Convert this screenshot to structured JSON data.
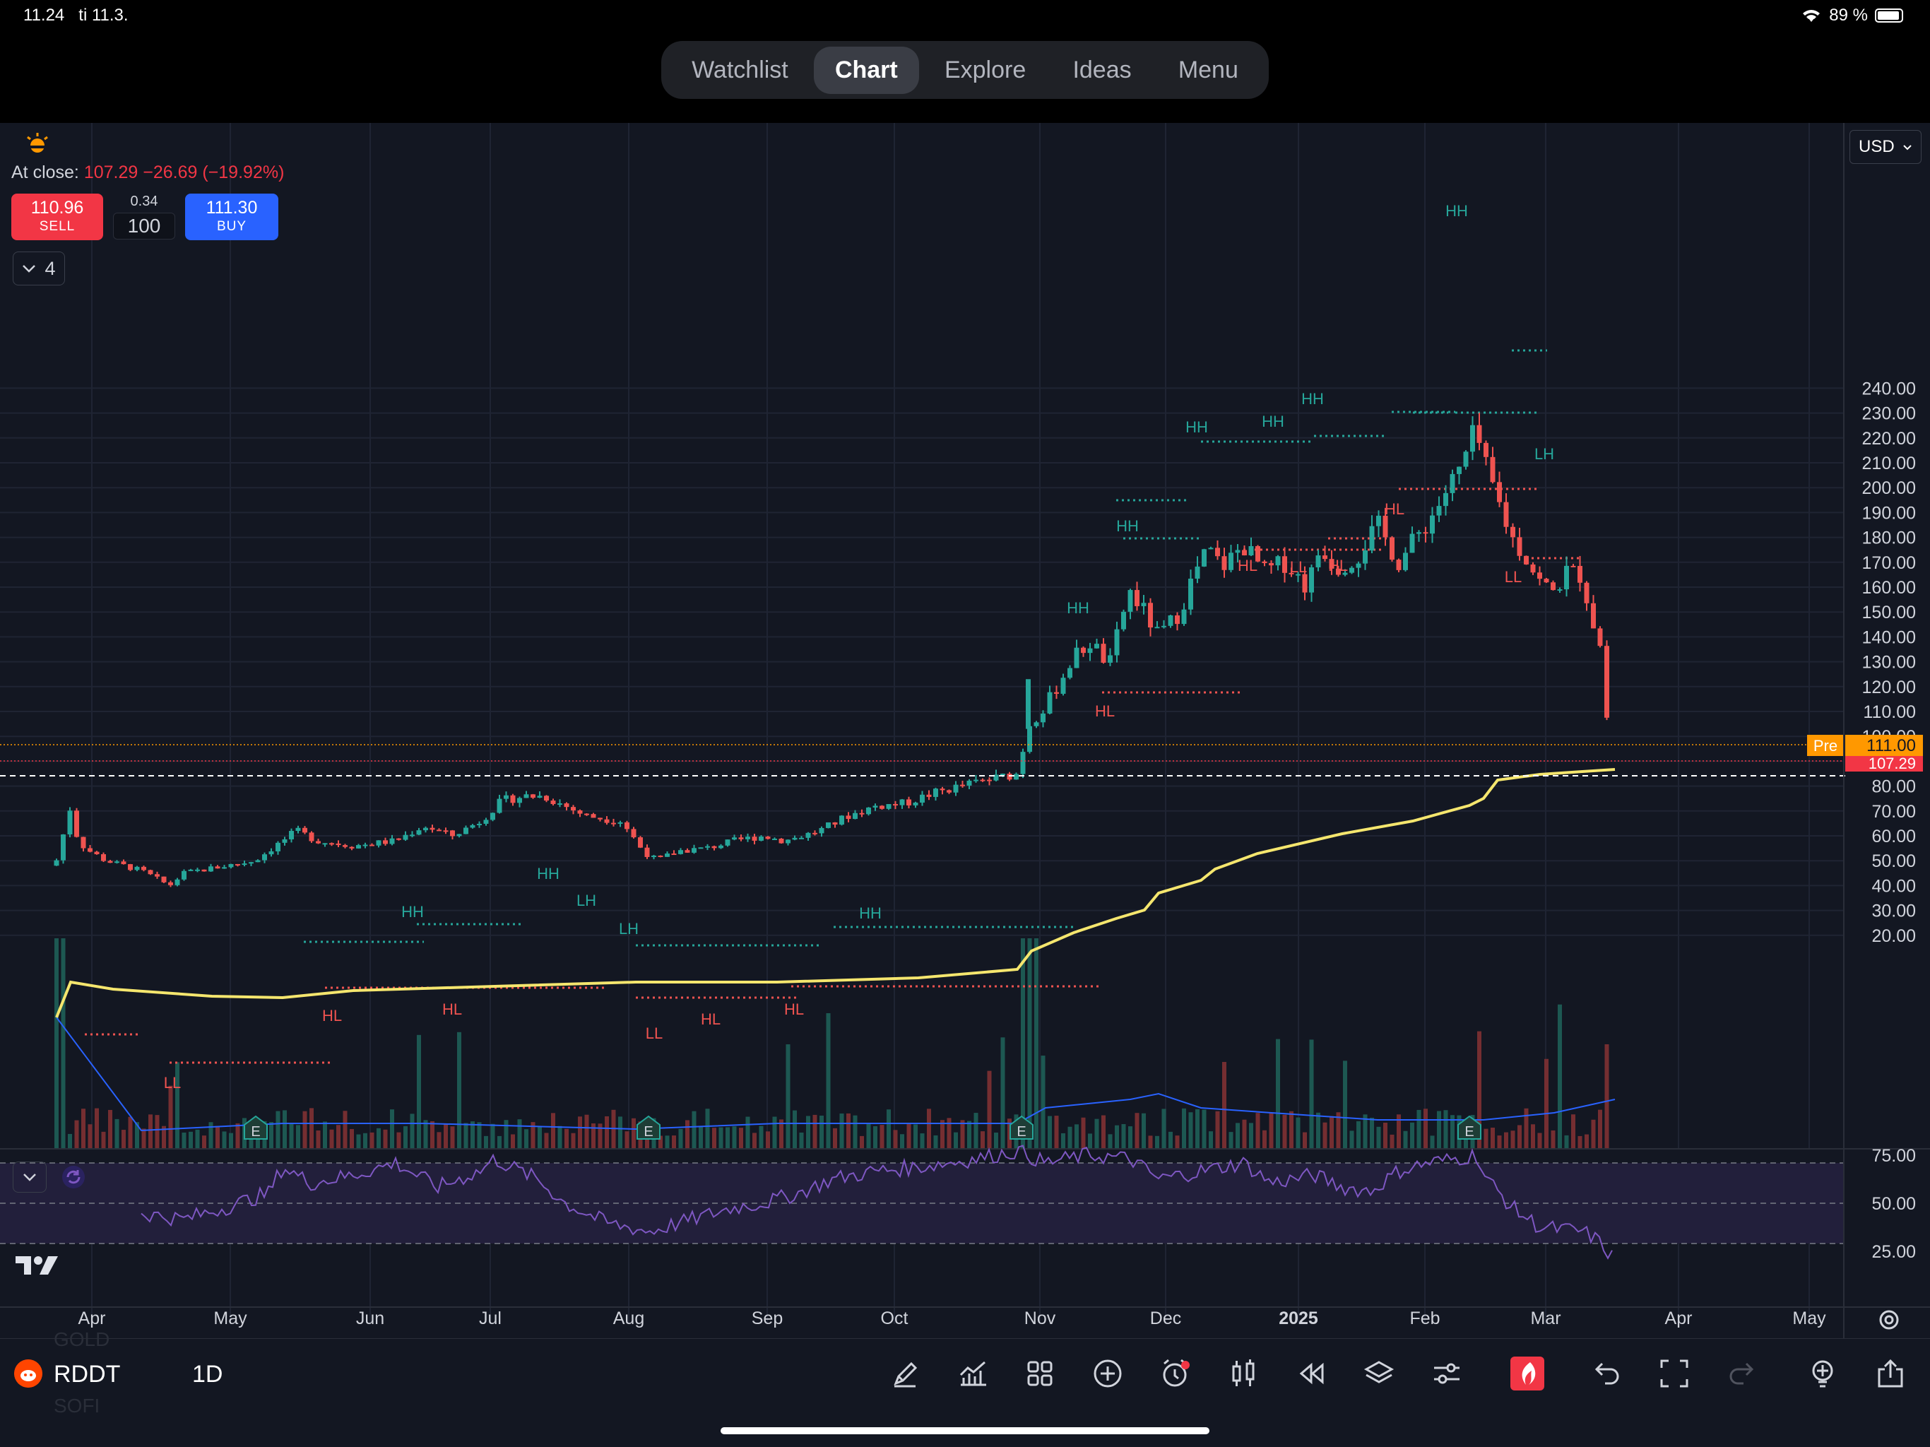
{
  "status_bar": {
    "time": "11.24",
    "date": "ti 11.3.",
    "battery": "89 %"
  },
  "nav": {
    "tabs": [
      {
        "label": "Watchlist",
        "active": false
      },
      {
        "label": "Chart",
        "active": true
      },
      {
        "label": "Explore",
        "active": false
      },
      {
        "label": "Ideas",
        "active": false
      },
      {
        "label": "Menu",
        "active": false
      }
    ]
  },
  "quote": {
    "at_close_label": "At close:",
    "at_close_value": "107.29",
    "change": "−26.69 (−19.92%)",
    "sell_price": "110.96",
    "sell_label": "SELL",
    "spread": "0.34",
    "quantity": "100",
    "buy_price": "111.30",
    "buy_label": "BUY",
    "indicators_count": "4"
  },
  "currency_select": "USD",
  "price_axis": {
    "ticks": [
      "240.00",
      "230.00",
      "220.00",
      "210.00",
      "200.00",
      "190.00",
      "180.00",
      "170.00",
      "160.00",
      "150.00",
      "140.00",
      "130.00",
      "120.00",
      "110.00",
      "100.00",
      "90.00",
      "80.00",
      "70.00",
      "60.00",
      "50.00",
      "40.00",
      "30.00",
      "20.00"
    ],
    "pre_label": "Pre",
    "pre_price": "111.00",
    "last_price": "107.29"
  },
  "rsi_axis": {
    "ticks": [
      "75.00",
      "50.00",
      "25.00"
    ]
  },
  "time_axis": {
    "labels": [
      "Apr",
      "May",
      "Jun",
      "Jul",
      "Aug",
      "Sep",
      "Oct",
      "Nov",
      "Dec",
      "2025",
      "Feb",
      "Mar",
      "Apr",
      "May"
    ]
  },
  "pattern_labels": [
    "HH",
    "HL",
    "LL",
    "LH"
  ],
  "earnings_marker": "E",
  "chart_data": {
    "type": "candlestick",
    "symbol": "RDDT",
    "interval": "1D",
    "ylim": [
      20,
      240
    ],
    "close_series_approx": {
      "dates": [
        "Mar",
        "Apr",
        "May",
        "Jun",
        "Jul",
        "Aug",
        "Sep",
        "Oct",
        "Oct-end",
        "Nov",
        "Dec",
        "2025",
        "Feb",
        "Feb-peak",
        "Mar",
        "Mar-last"
      ],
      "values": [
        48,
        42,
        47,
        55,
        72,
        52,
        56,
        68,
        82,
        120,
        170,
        165,
        175,
        228,
        165,
        107.29
      ]
    },
    "vwap_approx": {
      "dates": [
        "Mar",
        "Apr",
        "May",
        "Jun",
        "Jul",
        "Aug",
        "Sep",
        "Oct",
        "Nov",
        "Dec",
        "2025",
        "Feb",
        "Mar"
      ],
      "values": [
        58,
        53,
        52,
        55,
        57,
        57,
        57,
        59,
        65,
        80,
        88,
        95,
        105
      ]
    },
    "rsi": {
      "ylim": [
        0,
        100
      ],
      "levels": [
        70,
        50,
        30
      ]
    }
  },
  "toolbar": {
    "symbol": "RDDT",
    "interval": "1D",
    "ghost_top": "GOLD",
    "ghost_bottom": "SOFI",
    "icons": [
      "pen-icon",
      "indicators-icon",
      "layouts-icon",
      "add-icon",
      "alert-icon",
      "candles-icon",
      "replay-icon",
      "layers-icon",
      "settings-sliders-icon",
      "brand-icon",
      "undo-icon",
      "fullscreen-icon",
      "redo-icon",
      "idea-icon",
      "share-icon"
    ]
  }
}
